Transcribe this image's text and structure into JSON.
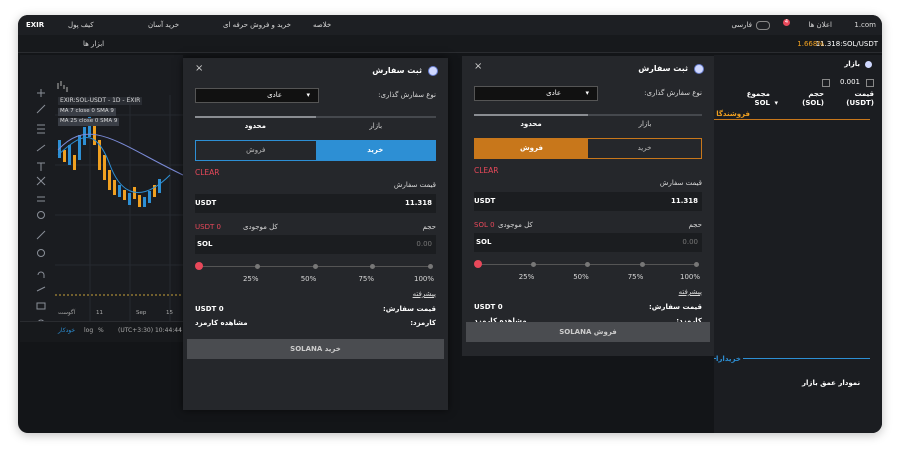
{
  "top_nav": {
    "brand": "EXIR",
    "site": "1.com",
    "notifications": "اعلان ها",
    "badge": "4",
    "language": "فارسی",
    "menu": [
      "کیف پول",
      "خرید آسان",
      "خرید و فروش حرفه ای",
      "خلاصه"
    ]
  },
  "toolbar": {
    "tools": "ابزار ها",
    "pair_price": "11.318:SOL/USDT",
    "change": "1.668%"
  },
  "chart_widget": {
    "symbol": "EXIR:SOL-USDT - 1D - EXIR",
    "indicators": [
      "MA 7 close 0 SMA 9",
      "MA 25 close 0 SMA 9"
    ],
    "x_labels": [
      "آگوست",
      "11",
      "Sep",
      "15"
    ],
    "controls": [
      "خودکار",
      "log",
      "%"
    ],
    "time": "(UTC+3:30) 10:44:44"
  },
  "order_panels": [
    {
      "title": "ثبت سفارش",
      "order_type_label": "نوع سفارش گذاری:",
      "order_type": "عادی",
      "tabs": [
        "بازار",
        "محدود"
      ],
      "active_tab_index": 1,
      "sides": [
        "خرید",
        "فروش"
      ],
      "active_side_index": 0,
      "accent": "#2d8fd4",
      "clear": "CLEAR",
      "price_label": "قیمت سفارش",
      "price_unit": "USDT",
      "price": "11.318",
      "volume_label": "حجم",
      "balance_label": "کل موجودی",
      "balance_value": "USDT 0",
      "amount_unit": "SOL",
      "amount": "0.00",
      "slider": [
        "25%",
        "50%",
        "75%",
        "100%"
      ],
      "advanced": "پیشرفته",
      "total_label": "قیمت سفارش:",
      "total": "USDT 0",
      "fee_label": "کارمزد:",
      "fee": "مشاهده کارمزد",
      "submit": "خرید SOLANA"
    },
    {
      "title": "ثبت سفارش",
      "order_type_label": "نوع سفارش گذاری:",
      "order_type": "عادی",
      "tabs": [
        "بازار",
        "محدود"
      ],
      "active_tab_index": 1,
      "sides": [
        "خرید",
        "فروش"
      ],
      "active_side_index": 1,
      "accent": "#c8771b",
      "clear": "CLEAR",
      "price_label": "قیمت سفارش",
      "price_unit": "USDT",
      "price": "11.318",
      "volume_label": "حجم",
      "balance_label": "کل موجودی",
      "balance_value": "SOL 0",
      "amount_unit": "SOL",
      "amount": "0.00",
      "slider": [
        "25%",
        "50%",
        "75%",
        "100%"
      ],
      "advanced": "پیشرفته",
      "total_label": "قیمت سفارش:",
      "total": "USDT 0",
      "fee_label": "کارمزد:",
      "fee": "مشاهده کارمزد",
      "submit": "فروش SOLANA"
    }
  ],
  "order_book": {
    "title": "بازار",
    "step": "0.001",
    "headers": [
      {
        "title": "قیمت",
        "unit": "(USDT)"
      },
      {
        "title": "حجم",
        "unit": "(SOL)"
      },
      {
        "title": "مجموع",
        "unit": "SOL"
      }
    ],
    "sellers": "فروشندگا",
    "buyers": "خریدارا",
    "depth": "نمودار عمق بازار"
  }
}
